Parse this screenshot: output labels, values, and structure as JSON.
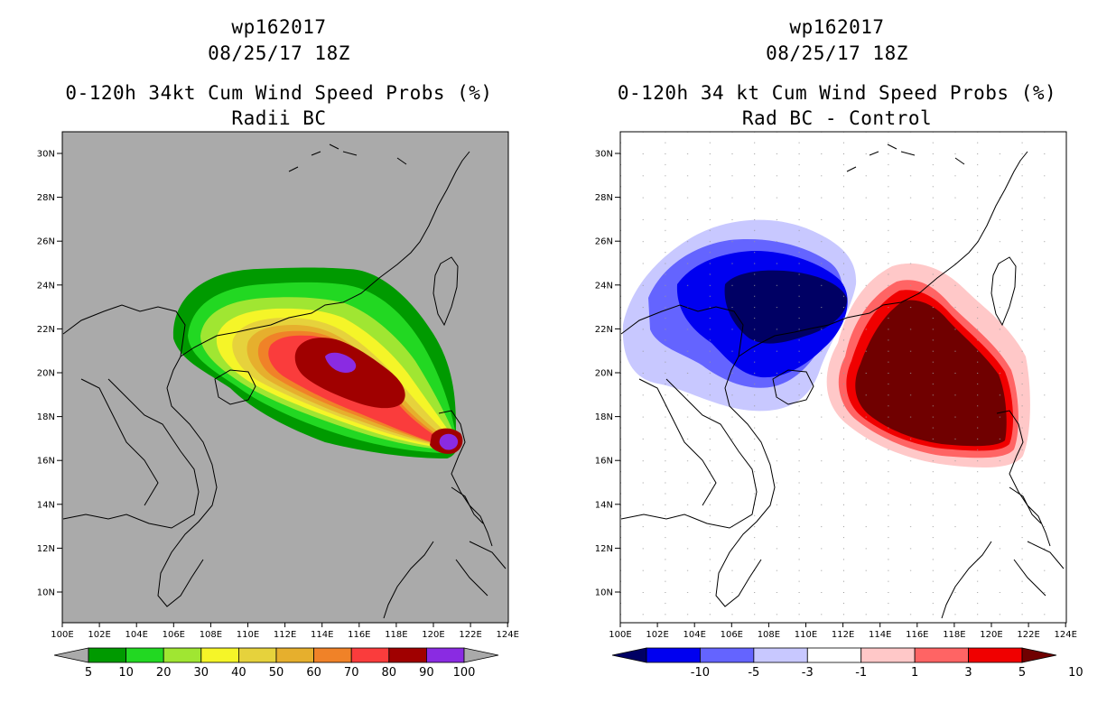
{
  "left_panel": {
    "storm_id": "wp162017",
    "date": "08/25/17 18Z",
    "title": "0-120h 34kt Cum Wind Speed Probs (%)",
    "subtitle": "Radii BC",
    "colorbar": {
      "labels": [
        "5",
        "10",
        "20",
        "30",
        "40",
        "50",
        "60",
        "70",
        "80",
        "90",
        "100"
      ],
      "colors": [
        "#aaaaaa",
        "#009a00",
        "#22d822",
        "#a0e632",
        "#f5f528",
        "#e6d23c",
        "#e6af2d",
        "#f08228",
        "#fa3c3c",
        "#a00000",
        "#8a2be2",
        "#aaaaaa"
      ]
    }
  },
  "right_panel": {
    "storm_id": "wp162017",
    "date": "08/25/17 18Z",
    "title": "0-120h 34 kt Cum Wind Speed Probs (%)",
    "subtitle": "Rad BC - Control",
    "colorbar": {
      "labels": [
        "-10",
        "-5",
        "-3",
        "-1",
        "1",
        "3",
        "5",
        "10"
      ],
      "colors": [
        "#000064",
        "#0000f0",
        "#6464ff",
        "#c8c8ff",
        "#ffffff",
        "#ffc8c8",
        "#ff6464",
        "#f00000",
        "#700000"
      ]
    }
  },
  "map": {
    "lat_labels": [
      "30N",
      "28N",
      "26N",
      "24N",
      "22N",
      "20N",
      "18N",
      "16N",
      "14N",
      "12N",
      "10N"
    ],
    "lon_labels": [
      "100E",
      "102E",
      "104E",
      "106E",
      "108E",
      "110E",
      "112E",
      "114E",
      "116E",
      "118E",
      "120E",
      "122E",
      "124E"
    ]
  }
}
